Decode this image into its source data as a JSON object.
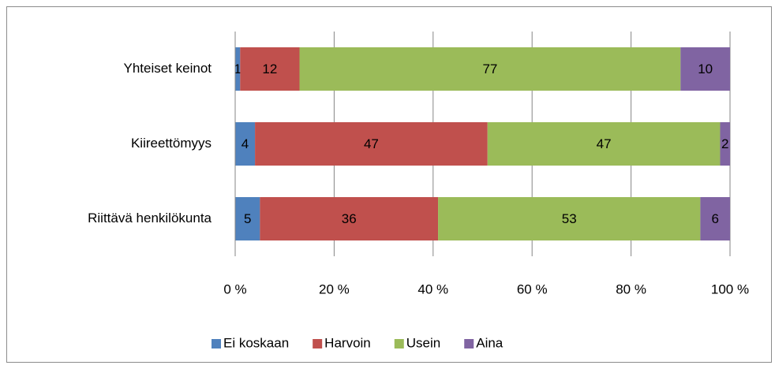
{
  "chart_data": {
    "type": "stacked-bar-horizontal",
    "categories": [
      "Yhteiset keinot",
      "Kiireettömyys",
      "Riittävä henkilökunta"
    ],
    "series": [
      {
        "name": "Ei koskaan",
        "color": "#4f81bd",
        "values": [
          1,
          4,
          5
        ]
      },
      {
        "name": "Harvoin",
        "color": "#c0504d",
        "values": [
          12,
          47,
          36
        ]
      },
      {
        "name": "Usein",
        "color": "#9bbb59",
        "values": [
          77,
          47,
          53
        ]
      },
      {
        "name": "Aina",
        "color": "#8064a2",
        "values": [
          10,
          2,
          6
        ]
      }
    ],
    "xlim": [
      0,
      100
    ],
    "xticks": [
      {
        "value": 0,
        "label": "0 %"
      },
      {
        "value": 20,
        "label": "20 %"
      },
      {
        "value": 40,
        "label": "40 %"
      },
      {
        "value": 60,
        "label": "60 %"
      },
      {
        "value": 80,
        "label": "80 %"
      },
      {
        "value": 100,
        "label": "100 %"
      }
    ],
    "grid": true,
    "legend": "bottom"
  }
}
